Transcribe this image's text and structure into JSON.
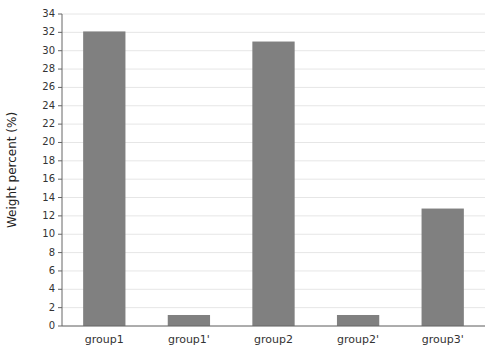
{
  "chart_data": {
    "type": "bar",
    "categories": [
      "group1",
      "group1'",
      "group2",
      "group2'",
      "group3'"
    ],
    "values": [
      32.1,
      1.2,
      31.0,
      1.2,
      12.8
    ],
    "color": "#808080",
    "ylabel": "Weight percent (%)",
    "ylim": [
      0,
      34
    ],
    "yticks": [
      0,
      2,
      4,
      6,
      8,
      10,
      12,
      14,
      16,
      18,
      20,
      22,
      24,
      26,
      28,
      30,
      32,
      34
    ]
  }
}
